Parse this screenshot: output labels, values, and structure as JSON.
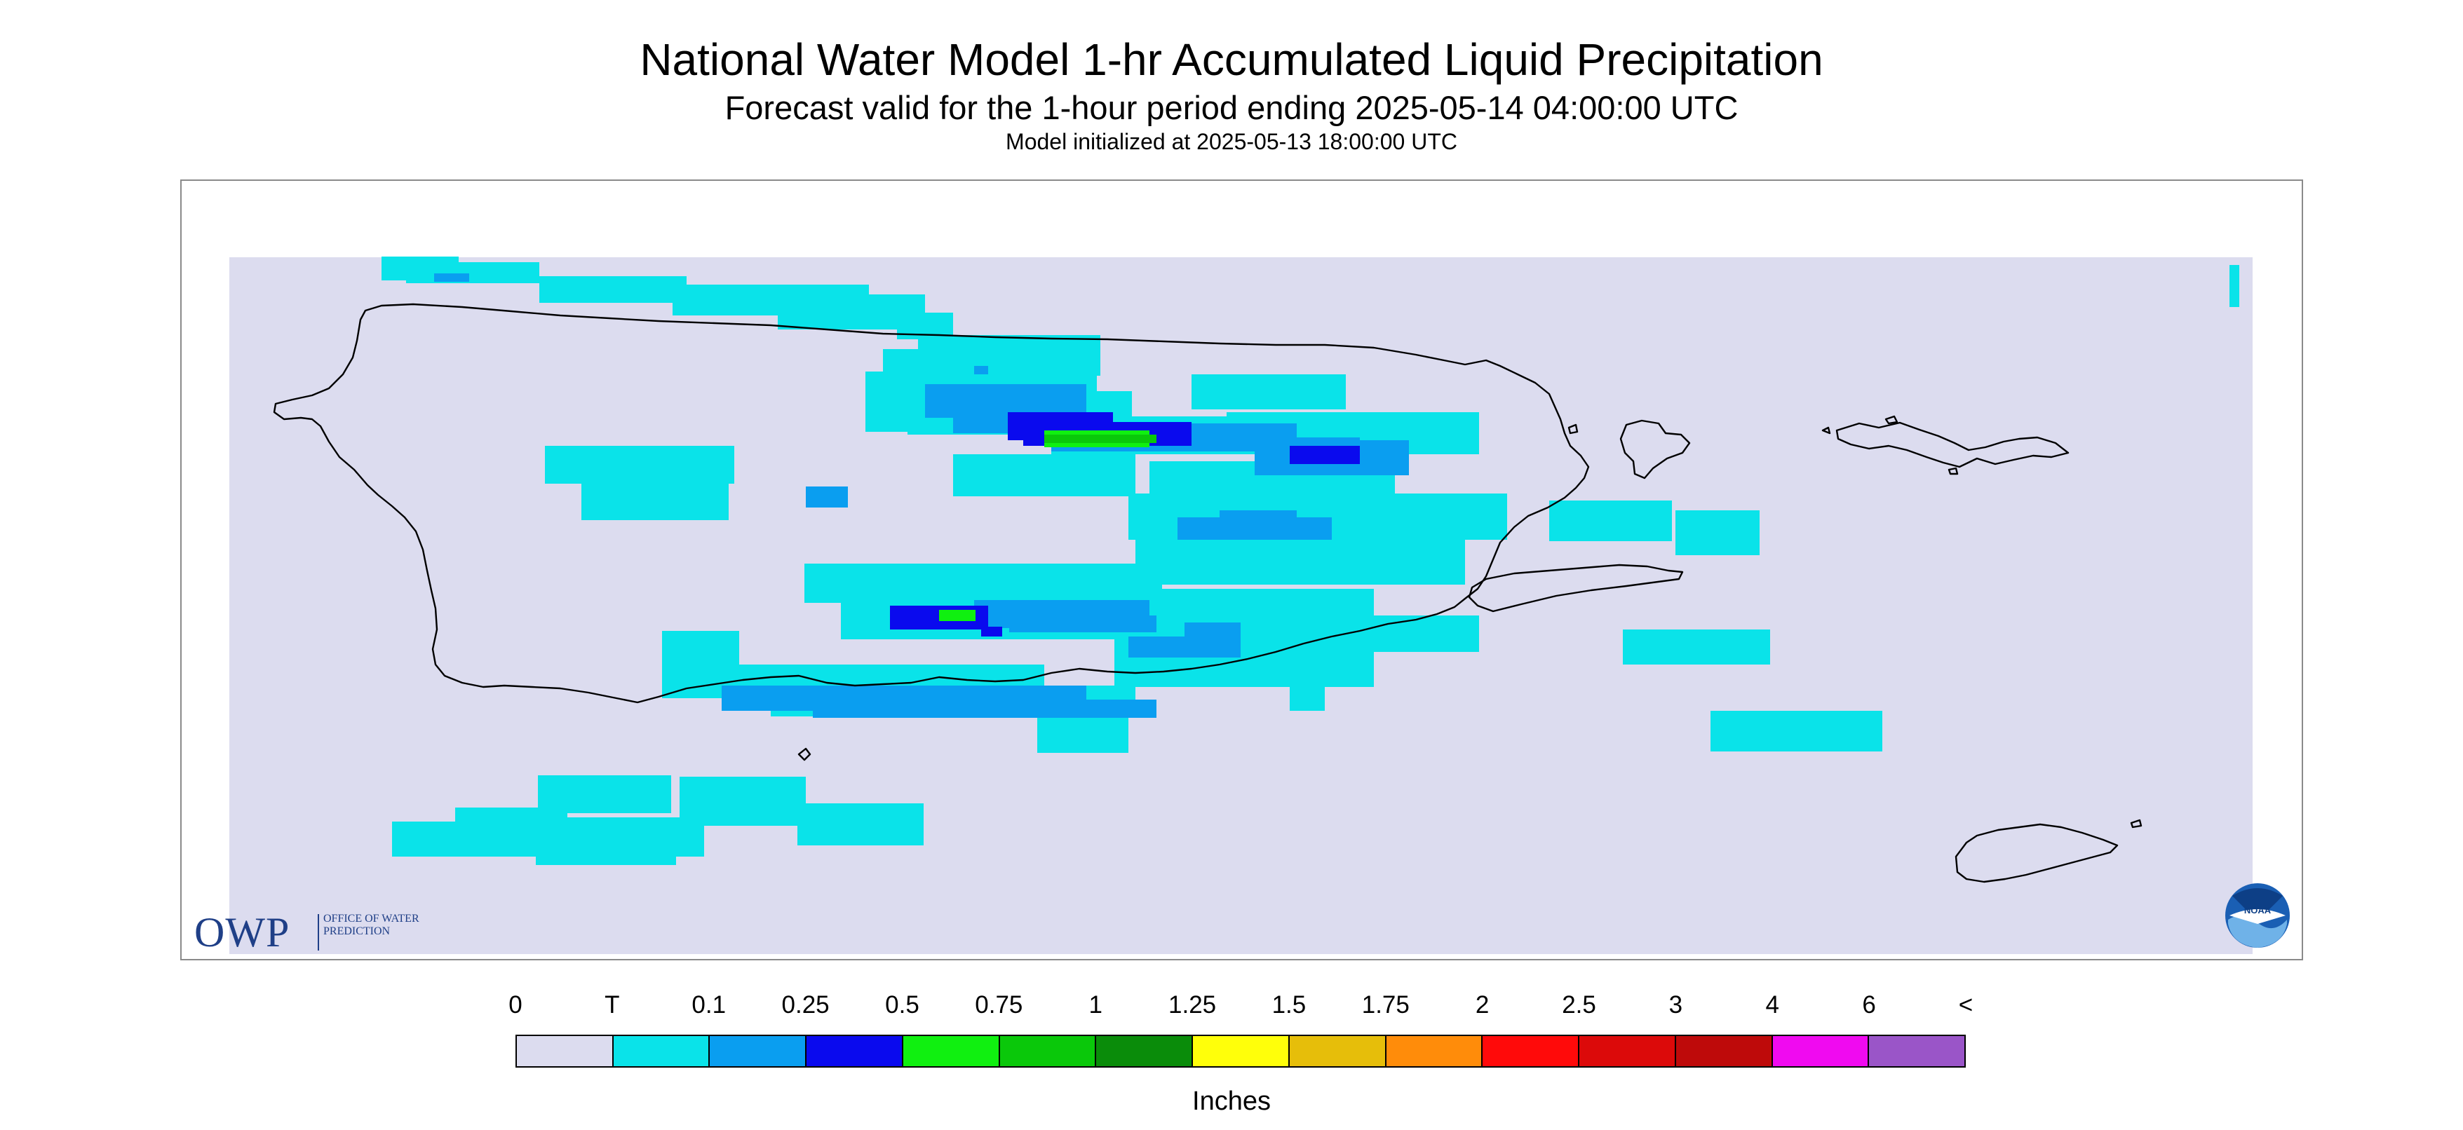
{
  "title": "National Water Model 1-hr Accumulated Liquid Precipitation",
  "subtitle": "Forecast valid for the 1-hour period ending 2025-05-14 04:00:00 UTC",
  "init_line": "Model initialized at 2025-05-13 18:00:00 UTC",
  "logos": {
    "owp_letters": "OWP",
    "owp_text": "Office of Water Prediction",
    "noaa": "NOAA"
  },
  "legend": {
    "unit": "Inches",
    "labels": [
      "0",
      "T",
      "0.1",
      "0.25",
      "0.5",
      "0.75",
      "1",
      "1.25",
      "1.5",
      "1.75",
      "2",
      "2.5",
      "3",
      "4",
      "6",
      "<"
    ],
    "colors": [
      "#dcdcef",
      "#0ae3e9",
      "#0a9ef0",
      "#0a0aee",
      "#10f010",
      "#0ac80a",
      "#0a8c0a",
      "#ffff0a",
      "#e6be0a",
      "#ff8c0a",
      "#ff0a0a",
      "#dc0a0a",
      "#be0a0a",
      "#f00af0",
      "#9a55c8"
    ]
  },
  "map": {
    "background_color": "#dcdcef",
    "coast_color": "#000000",
    "categories_shown": [
      "T",
      "0.1",
      "0.25",
      "0.5",
      "0.75"
    ]
  }
}
